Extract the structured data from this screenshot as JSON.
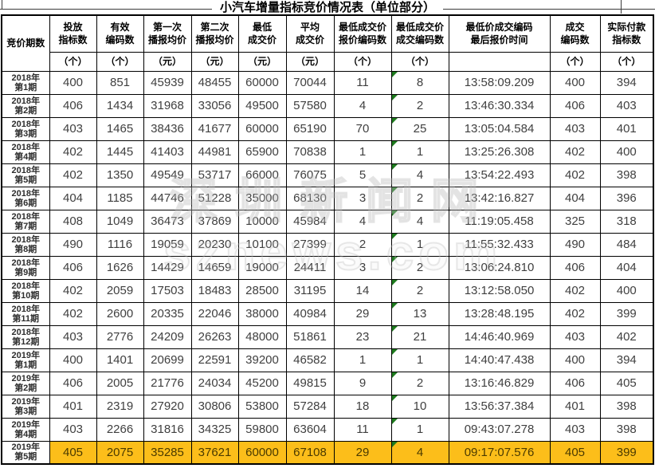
{
  "title": "小汽车增量指标竞价情况表（单位部分）",
  "watermark": {
    "line1": "深圳新闻网",
    "line2": "sznews.com"
  },
  "colors": {
    "highlight_row": "#FCBE1A",
    "marker_triangle": "#1E7B1E",
    "grid_border": "#000000",
    "header_text": "#000000",
    "data_text": "#3F3F3F"
  },
  "table": {
    "period_column": {
      "label": "竞价期数"
    },
    "columns": [
      {
        "label_lines": [
          "投放",
          "指标数"
        ],
        "unit": "（个）",
        "marker": false
      },
      {
        "label_lines": [
          "有效",
          "编码数"
        ],
        "unit": "（个）",
        "marker": false
      },
      {
        "label_lines": [
          "第一次",
          "播报均价"
        ],
        "unit": "（元）",
        "marker": false
      },
      {
        "label_lines": [
          "第二次",
          "播报均价"
        ],
        "unit": "（元）",
        "marker": false
      },
      {
        "label_lines": [
          "最低",
          "成交价"
        ],
        "unit": "（元）",
        "marker": false
      },
      {
        "label_lines": [
          "平均",
          "成交价"
        ],
        "unit": "（元）",
        "marker": false
      },
      {
        "label_lines": [
          "最低成交价",
          "报价编码数"
        ],
        "unit": "（个）",
        "marker": false
      },
      {
        "label_lines": [
          "最低成交价",
          "成交编码数"
        ],
        "unit": "（个）",
        "marker": true
      },
      {
        "label_lines": [
          "最低价成交编码",
          "最后报价时间"
        ],
        "unit": "",
        "marker": false
      },
      {
        "label_lines": [
          "成交",
          "编码数"
        ],
        "unit": "（个）",
        "marker": false
      },
      {
        "label_lines": [
          "实际付款",
          "指标数"
        ],
        "unit": "（个）",
        "marker": false
      }
    ],
    "rows": [
      {
        "year": "2018年",
        "term": "第1期",
        "highlight": false,
        "values": [
          400,
          851,
          45939,
          48455,
          60000,
          70044,
          11,
          8,
          "13:58:09.209",
          400,
          394
        ]
      },
      {
        "year": "2018年",
        "term": "第2期",
        "highlight": false,
        "values": [
          406,
          1434,
          31968,
          33056,
          49500,
          57580,
          4,
          2,
          "13:46:30.334",
          406,
          403
        ]
      },
      {
        "year": "2018年",
        "term": "第3期",
        "highlight": false,
        "values": [
          403,
          1465,
          38436,
          41677,
          60000,
          65190,
          70,
          25,
          "13:05:04.584",
          403,
          401
        ]
      },
      {
        "year": "2018年",
        "term": "第4期",
        "highlight": false,
        "values": [
          402,
          1445,
          41403,
          44981,
          65900,
          70838,
          1,
          1,
          "13:25:26.308",
          402,
          400
        ]
      },
      {
        "year": "2018年",
        "term": "第5期",
        "highlight": false,
        "values": [
          402,
          1350,
          49549,
          53717,
          66000,
          76075,
          5,
          4,
          "13:54:22.493",
          402,
          398
        ]
      },
      {
        "year": "2018年",
        "term": "第6期",
        "highlight": false,
        "values": [
          404,
          1185,
          44746,
          51228,
          35000,
          68130,
          3,
          2,
          "13:42:16.827",
          404,
          396
        ]
      },
      {
        "year": "2018年",
        "term": "第7期",
        "highlight": false,
        "values": [
          408,
          1049,
          36473,
          37869,
          10000,
          45984,
          4,
          4,
          "11:19:05.458",
          325,
          318
        ]
      },
      {
        "year": "2018年",
        "term": "第8期",
        "highlight": false,
        "values": [
          490,
          1116,
          19059,
          20230,
          10100,
          27399,
          2,
          1,
          "11:55:32.433",
          490,
          484
        ]
      },
      {
        "year": "2018年",
        "term": "第9期",
        "highlight": false,
        "values": [
          406,
          1626,
          14429,
          14659,
          19000,
          24411,
          3,
          2,
          "13:06:24.810",
          406,
          404
        ]
      },
      {
        "year": "2018年",
        "term": "第10期",
        "highlight": false,
        "values": [
          402,
          2059,
          17503,
          18483,
          28500,
          31195,
          14,
          2,
          "13:12:58.050",
          402,
          400
        ]
      },
      {
        "year": "2018年",
        "term": "第11期",
        "highlight": false,
        "values": [
          402,
          2600,
          20335,
          22046,
          38000,
          40984,
          29,
          13,
          "13:28:48.195",
          402,
          399
        ]
      },
      {
        "year": "2018年",
        "term": "第12期",
        "highlight": false,
        "values": [
          403,
          2776,
          24209,
          26263,
          48000,
          51861,
          23,
          21,
          "14:46:40.969",
          403,
          402
        ]
      },
      {
        "year": "2019年",
        "term": "第1期",
        "highlight": false,
        "values": [
          400,
          1401,
          20699,
          22591,
          39200,
          46582,
          1,
          1,
          "14:40:47.438",
          400,
          394
        ]
      },
      {
        "year": "2019年",
        "term": "第2期",
        "highlight": false,
        "values": [
          406,
          2005,
          21776,
          24034,
          45200,
          49815,
          9,
          2,
          "13:16:46.829",
          406,
          405
        ]
      },
      {
        "year": "2019年",
        "term": "第3期",
        "highlight": false,
        "values": [
          401,
          2319,
          27920,
          30806,
          53800,
          57284,
          18,
          10,
          "13:56:37.384",
          401,
          398
        ]
      },
      {
        "year": "2019年",
        "term": "第4期",
        "highlight": false,
        "values": [
          403,
          2266,
          31816,
          34325,
          59800,
          63604,
          11,
          1,
          "09:43:07.278",
          403,
          398
        ]
      },
      {
        "year": "2019年",
        "term": "第5期",
        "highlight": true,
        "values": [
          405,
          2075,
          35285,
          37621,
          60000,
          67108,
          29,
          4,
          "09:17:07.576",
          405,
          399
        ]
      }
    ]
  }
}
